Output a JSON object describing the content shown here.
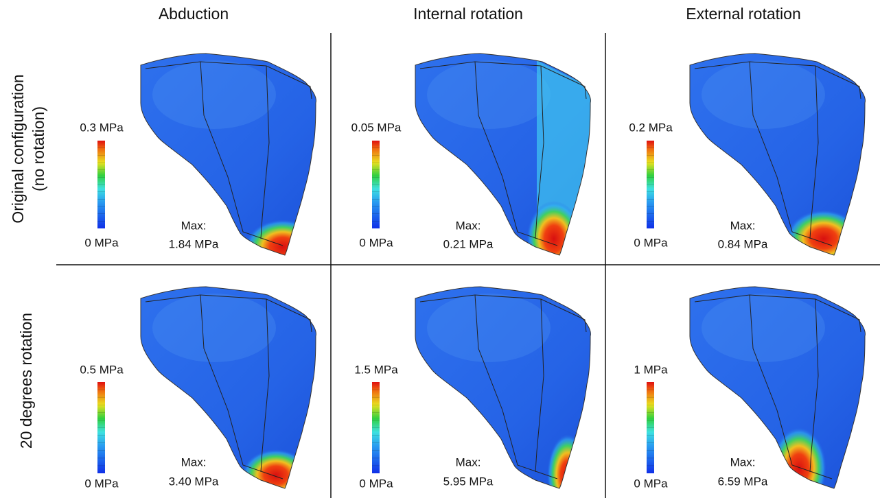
{
  "column_headers": [
    "Abduction",
    "Internal rotation",
    "External rotation"
  ],
  "row_headers": [
    [
      "Original configuration",
      "(no rotation)"
    ],
    [
      "20 degrees rotation"
    ]
  ],
  "panels": [
    {
      "scale_max": "0.3 MPa",
      "scale_min": "0 MPa",
      "max_label": "Max:",
      "max_value": "1.84 MPa"
    },
    {
      "scale_max": "0.05 MPa",
      "scale_min": "0 MPa",
      "max_label": "Max:",
      "max_value": "0.21 MPa"
    },
    {
      "scale_max": "0.2 MPa",
      "scale_min": "0 MPa",
      "max_label": "Max:",
      "max_value": "0.84 MPa"
    },
    {
      "scale_max": "0.5 MPa",
      "scale_min": "0 MPa",
      "max_label": "Max:",
      "max_value": "3.40 MPa"
    },
    {
      "scale_max": "1.5 MPa",
      "scale_min": "0 MPa",
      "max_label": "Max:",
      "max_value": "5.95 MPa"
    },
    {
      "scale_max": "1 MPa",
      "scale_min": "0 MPa",
      "max_label": "Max:",
      "max_value": "6.59 MPa"
    }
  ]
}
